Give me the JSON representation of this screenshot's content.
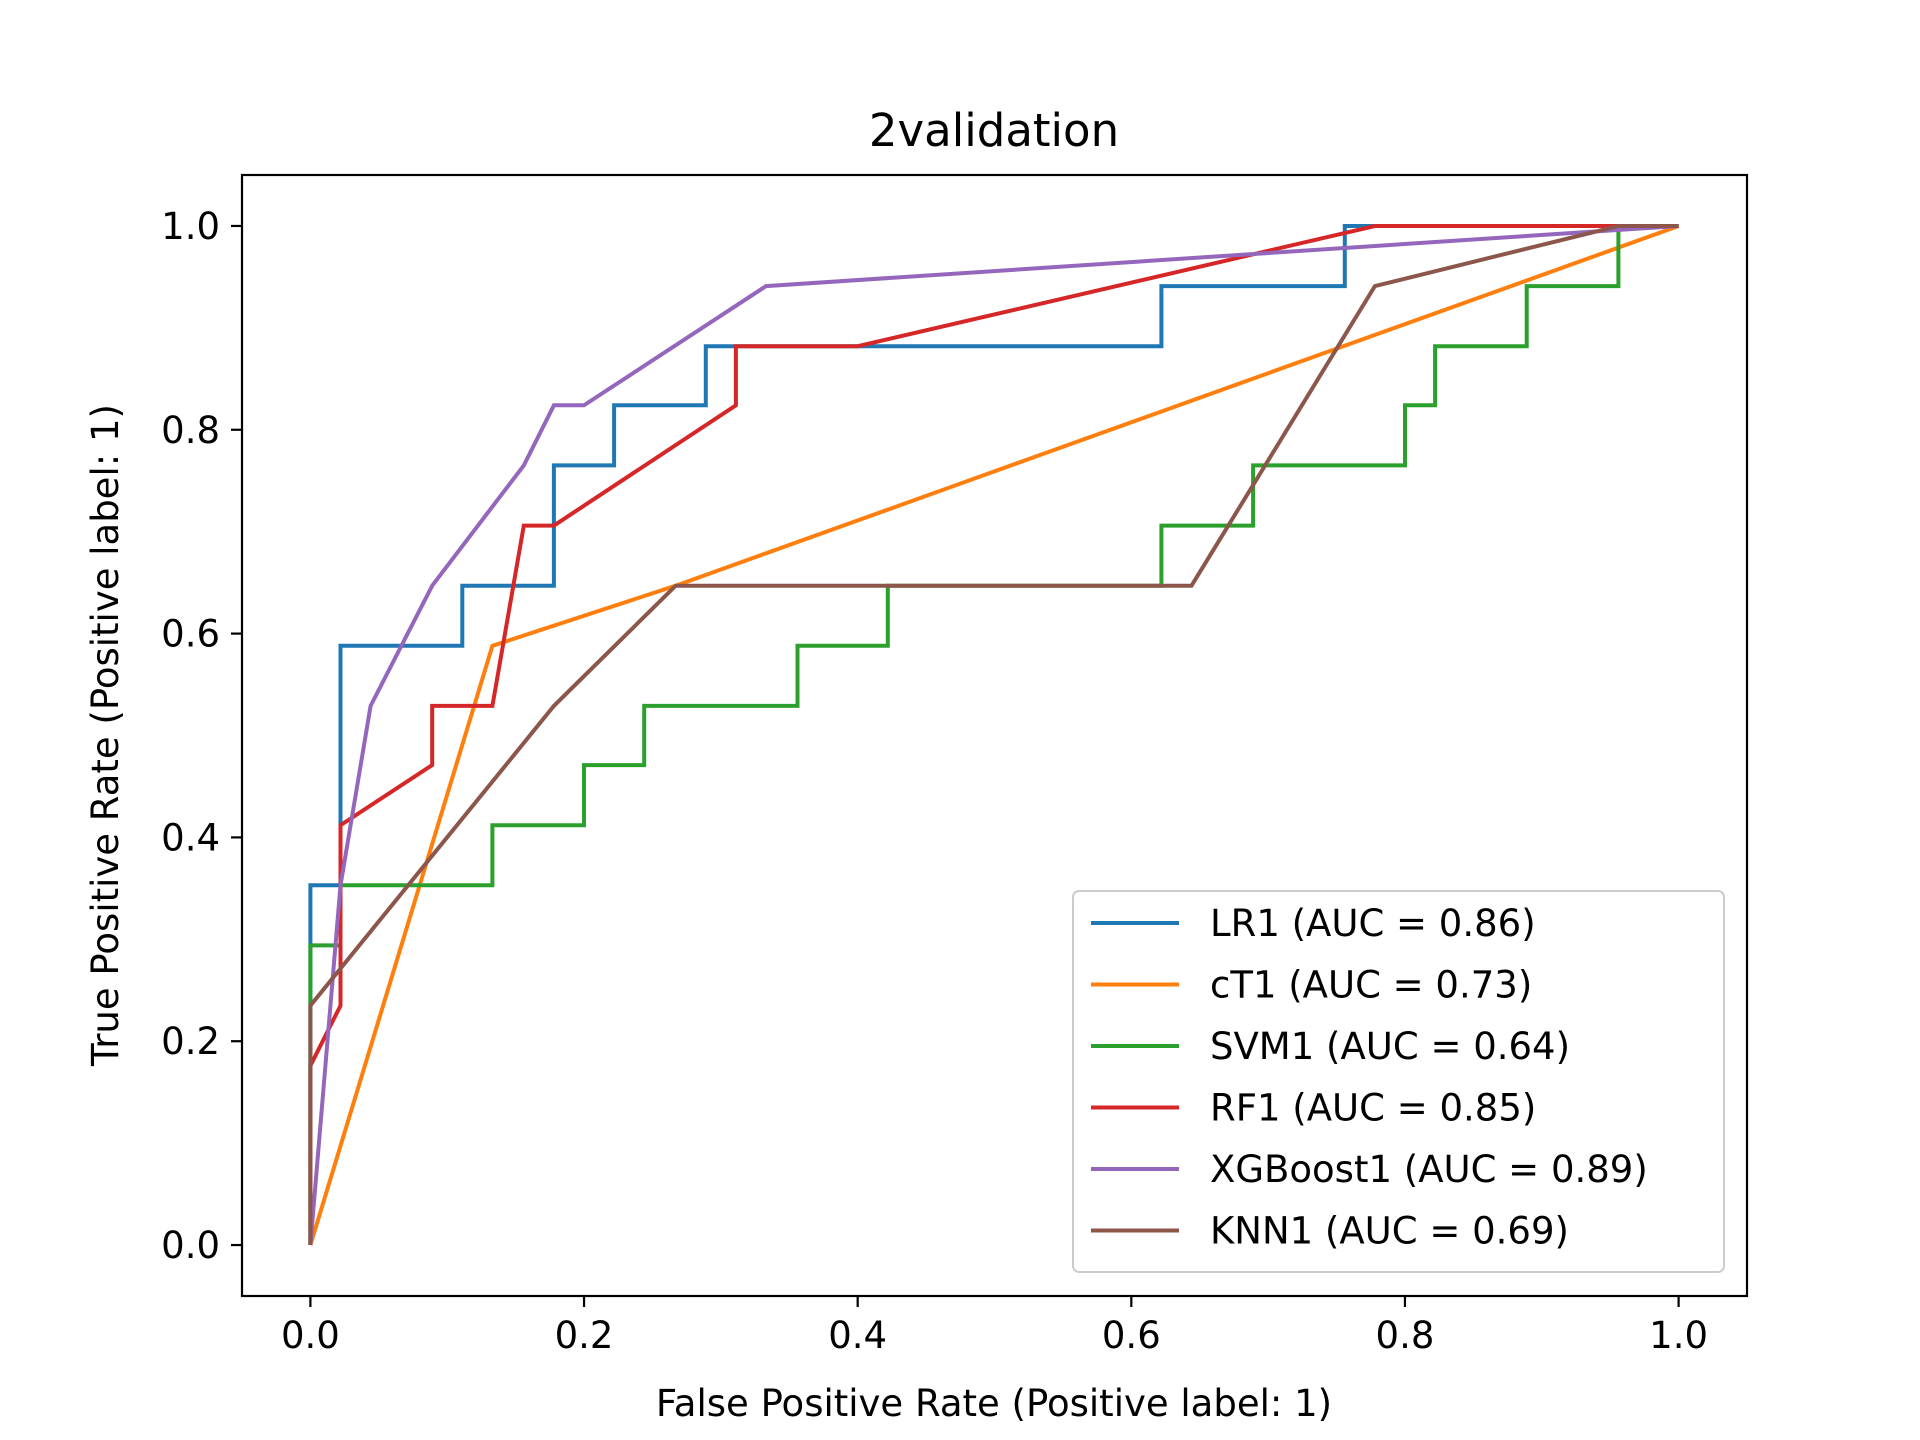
{
  "chart_data": {
    "type": "line",
    "title": "2validation",
    "xlabel": "False Positive Rate (Positive label: 1)",
    "ylabel": "True Positive Rate (Positive label: 1)",
    "xlim": [
      -0.05,
      1.05
    ],
    "ylim": [
      -0.05,
      1.05
    ],
    "xticks": [
      0.0,
      0.2,
      0.4,
      0.6,
      0.8,
      1.0
    ],
    "yticks": [
      0.0,
      0.2,
      0.4,
      0.6,
      0.8,
      1.0
    ],
    "xtick_labels": [
      "0.0",
      "0.2",
      "0.4",
      "0.6",
      "0.8",
      "1.0"
    ],
    "ytick_labels": [
      "0.0",
      "0.2",
      "0.4",
      "0.6",
      "0.8",
      "1.0"
    ],
    "grid": false,
    "legend_position": "lower-right",
    "series": [
      {
        "name": "LR1 (AUC = 0.86)",
        "color": "#1f77b4",
        "points": [
          [
            0,
            0
          ],
          [
            0,
            0.353
          ],
          [
            0.022,
            0.353
          ],
          [
            0.022,
            0.588
          ],
          [
            0.111,
            0.588
          ],
          [
            0.111,
            0.647
          ],
          [
            0.178,
            0.647
          ],
          [
            0.178,
            0.765
          ],
          [
            0.222,
            0.765
          ],
          [
            0.222,
            0.824
          ],
          [
            0.289,
            0.824
          ],
          [
            0.289,
            0.882
          ],
          [
            0.622,
            0.882
          ],
          [
            0.622,
            0.941
          ],
          [
            0.756,
            0.941
          ],
          [
            0.756,
            1.0
          ],
          [
            1.0,
            1.0
          ]
        ]
      },
      {
        "name": "cT1 (AUC = 0.73)",
        "color": "#ff7f0e",
        "points": [
          [
            0,
            0
          ],
          [
            0.133,
            0.588
          ],
          [
            0.267,
            0.647
          ],
          [
            1.0,
            1.0
          ]
        ]
      },
      {
        "name": "SVM1 (AUC = 0.64)",
        "color": "#2ca02c",
        "points": [
          [
            0,
            0
          ],
          [
            0,
            0.294
          ],
          [
            0.022,
            0.294
          ],
          [
            0.022,
            0.353
          ],
          [
            0.133,
            0.353
          ],
          [
            0.133,
            0.412
          ],
          [
            0.2,
            0.412
          ],
          [
            0.2,
            0.471
          ],
          [
            0.244,
            0.471
          ],
          [
            0.244,
            0.529
          ],
          [
            0.356,
            0.529
          ],
          [
            0.356,
            0.588
          ],
          [
            0.422,
            0.588
          ],
          [
            0.422,
            0.647
          ],
          [
            0.622,
            0.647
          ],
          [
            0.622,
            0.706
          ],
          [
            0.689,
            0.706
          ],
          [
            0.689,
            0.765
          ],
          [
            0.8,
            0.765
          ],
          [
            0.8,
            0.824
          ],
          [
            0.822,
            0.824
          ],
          [
            0.822,
            0.882
          ],
          [
            0.889,
            0.882
          ],
          [
            0.889,
            0.941
          ],
          [
            0.956,
            0.941
          ],
          [
            0.956,
            1.0
          ],
          [
            1.0,
            1.0
          ]
        ]
      },
      {
        "name": "RF1 (AUC = 0.85)",
        "color": "#d62728",
        "points": [
          [
            0,
            0
          ],
          [
            0,
            0.176
          ],
          [
            0.022,
            0.235
          ],
          [
            0.022,
            0.412
          ],
          [
            0.089,
            0.471
          ],
          [
            0.089,
            0.529
          ],
          [
            0.133,
            0.529
          ],
          [
            0.156,
            0.706
          ],
          [
            0.178,
            0.706
          ],
          [
            0.311,
            0.824
          ],
          [
            0.311,
            0.882
          ],
          [
            0.4,
            0.882
          ],
          [
            0.778,
            1.0
          ],
          [
            1.0,
            1.0
          ]
        ]
      },
      {
        "name": "XGBoost1 (AUC = 0.89)",
        "color": "#9467bd",
        "points": [
          [
            0,
            0
          ],
          [
            0.022,
            0.353
          ],
          [
            0.044,
            0.529
          ],
          [
            0.089,
            0.647
          ],
          [
            0.156,
            0.765
          ],
          [
            0.178,
            0.824
          ],
          [
            0.2,
            0.824
          ],
          [
            0.333,
            0.941
          ],
          [
            1.0,
            1.0
          ]
        ]
      },
      {
        "name": "KNN1 (AUC = 0.69)",
        "color": "#8c564b",
        "points": [
          [
            0,
            0
          ],
          [
            0,
            0.235
          ],
          [
            0.178,
            0.529
          ],
          [
            0.267,
            0.647
          ],
          [
            0.644,
            0.647
          ],
          [
            0.778,
            0.941
          ],
          [
            0.956,
            1.0
          ],
          [
            1.0,
            1.0
          ]
        ]
      }
    ]
  }
}
